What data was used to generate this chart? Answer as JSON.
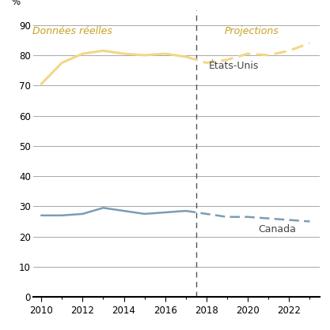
{
  "title": "",
  "ylabel": "%",
  "ylim": [
    0,
    95
  ],
  "yticks": [
    0,
    10,
    20,
    30,
    40,
    50,
    60,
    70,
    80,
    90
  ],
  "xlim": [
    2009.6,
    2023.5
  ],
  "xticks": [
    2010,
    2012,
    2014,
    2016,
    2018,
    2020,
    2022
  ],
  "xticks_minor": [
    2010,
    2011,
    2012,
    2013,
    2014,
    2015,
    2016,
    2017,
    2018,
    2019,
    2020,
    2021,
    2022,
    2023
  ],
  "divider_x": 2017.5,
  "us_color": "#f0d888",
  "canada_color": "#7a9db5",
  "text_color_italic": "#c8a020",
  "text_color_label": "#444444",
  "us_actual_years": [
    2010,
    2011,
    2012,
    2013,
    2014,
    2015,
    2016,
    2017
  ],
  "us_actual_values": [
    70.5,
    77.5,
    80.5,
    81.5,
    80.5,
    80.0,
    80.5,
    79.5
  ],
  "us_proj_years": [
    2017,
    2018,
    2019,
    2020,
    2021,
    2022,
    2023
  ],
  "us_proj_values": [
    79.5,
    77.5,
    78.5,
    80.5,
    80.0,
    81.5,
    84.0
  ],
  "canada_actual_years": [
    2010,
    2011,
    2012,
    2013,
    2014,
    2015,
    2016,
    2017
  ],
  "canada_actual_values": [
    27.0,
    27.0,
    27.5,
    29.5,
    28.5,
    27.5,
    28.0,
    28.5
  ],
  "canada_proj_years": [
    2017,
    2018,
    2019,
    2020,
    2021,
    2022,
    2023
  ],
  "canada_proj_values": [
    28.5,
    27.5,
    26.5,
    26.5,
    26.0,
    25.5,
    25.0
  ],
  "label_donnees_reelles": "Données réelles",
  "label_projections": "Projections",
  "label_etats_unis": "États-Unis",
  "label_canada": "Canada",
  "grid_color": "#999999",
  "background_color": "#ffffff",
  "font_size_axis": 8.5,
  "font_size_label": 9,
  "font_size_ylabel": 8.5,
  "donnees_x": 2011.5,
  "donnees_y": 88,
  "projections_x": 2020.2,
  "projections_y": 88,
  "etats_unis_x": 2018.1,
  "etats_unis_y": 76.5,
  "canada_x": 2020.5,
  "canada_y": 22.5
}
